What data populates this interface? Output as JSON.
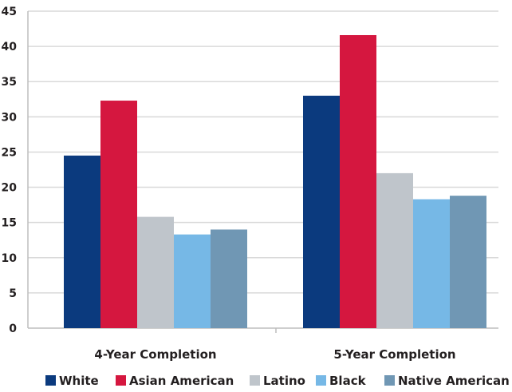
{
  "chart_data": {
    "type": "bar",
    "categories": [
      "4-Year Completion",
      "5-Year Completion"
    ],
    "series": [
      {
        "name": "White",
        "color": "#0b3a7e",
        "values": [
          24.5,
          33.0
        ]
      },
      {
        "name": "Asian American",
        "color": "#d5173f",
        "values": [
          32.3,
          41.6
        ]
      },
      {
        "name": "Latino",
        "color": "#bfc5cb",
        "values": [
          15.8,
          22.0
        ]
      },
      {
        "name": "Black",
        "color": "#76b8e6",
        "values": [
          13.3,
          18.3
        ]
      },
      {
        "name": "Native American",
        "color": "#7097b4",
        "values": [
          14.0,
          18.8
        ]
      }
    ],
    "ylim": [
      0,
      45
    ],
    "yticks": [
      0,
      5,
      10,
      15,
      20,
      25,
      30,
      35,
      40,
      45
    ],
    "grid": true,
    "legend": "bottom"
  }
}
